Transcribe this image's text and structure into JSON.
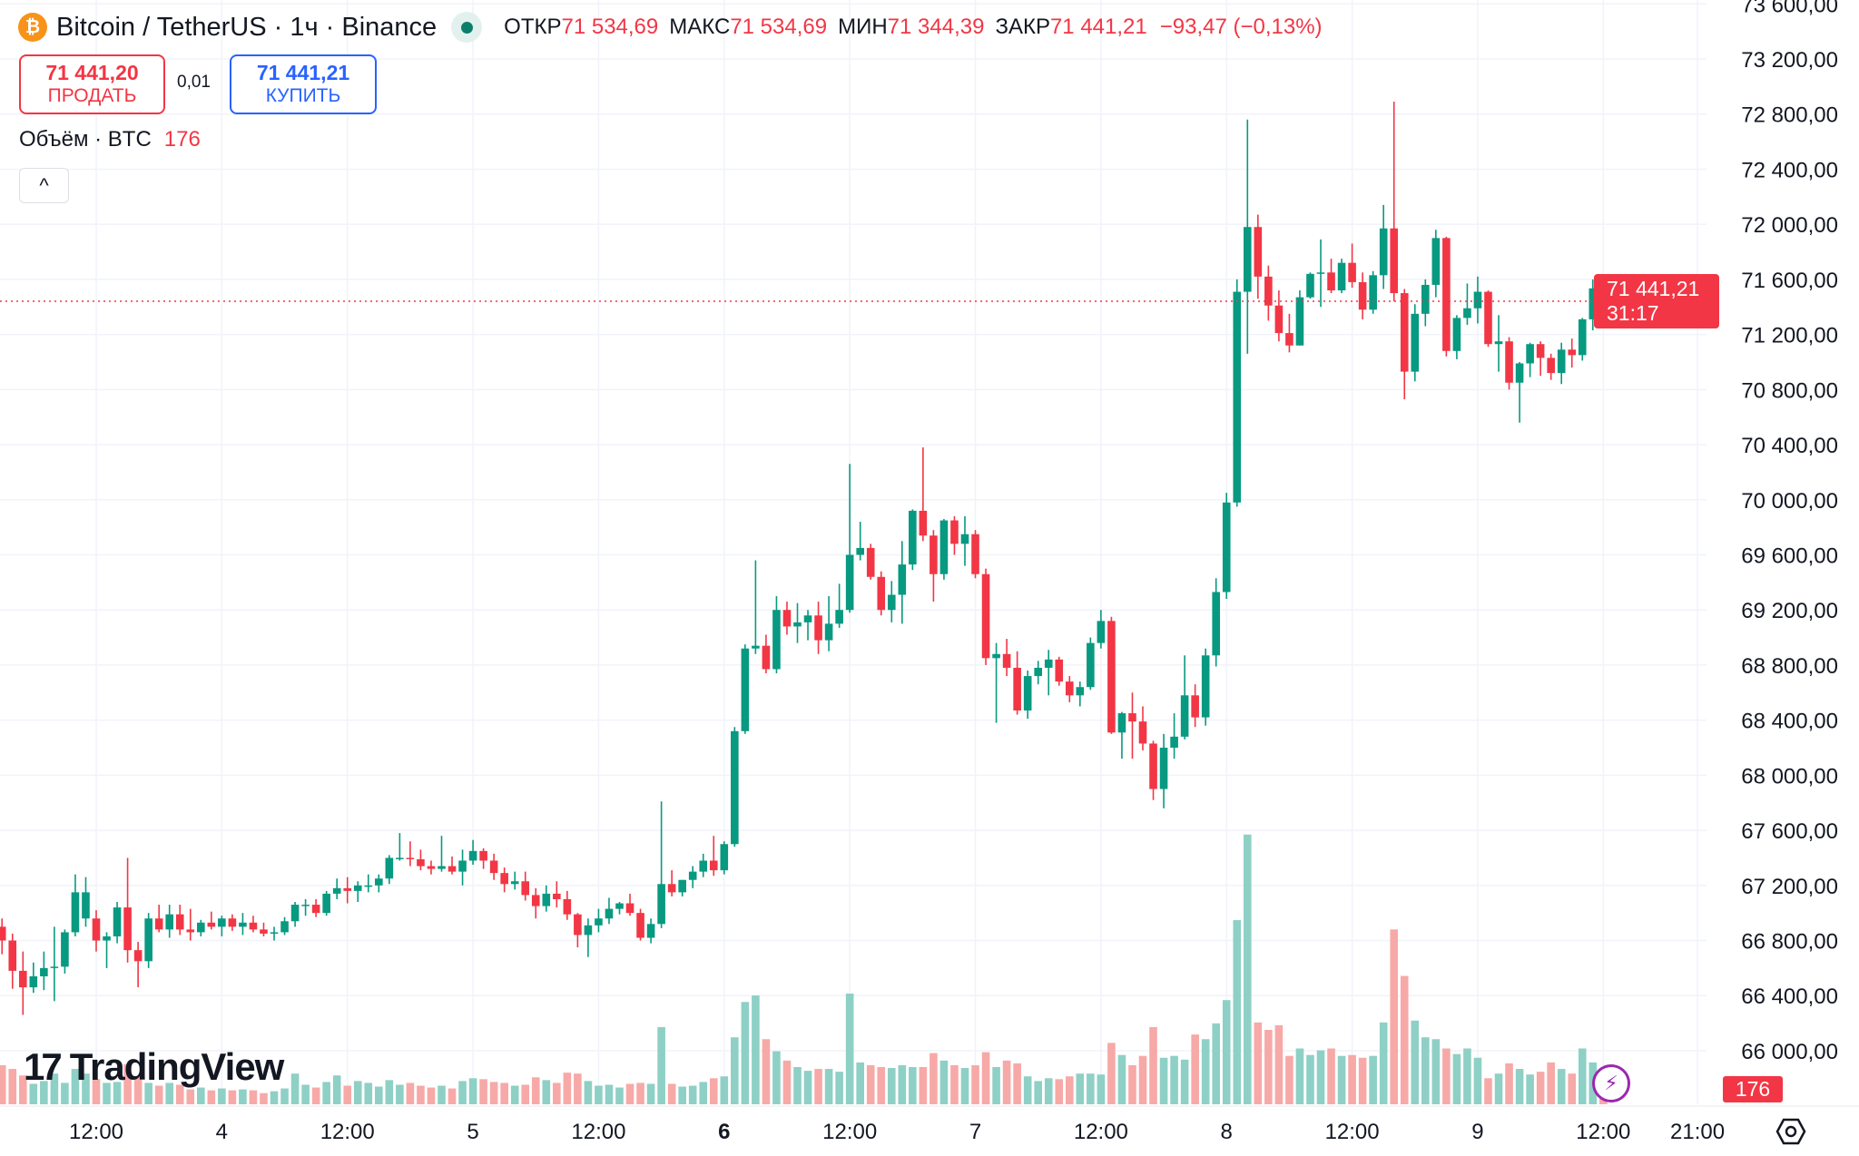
{
  "header": {
    "symbol_title": "Bitcoin / TetherUS · 1ч · Binance",
    "logo_letter": "₿",
    "ohlc": [
      {
        "label": "ОТКР",
        "value": "71 534,69"
      },
      {
        "label": "МАКС",
        "value": "71 534,69"
      },
      {
        "label": "МИН",
        "value": "71 344,39"
      },
      {
        "label": "ЗАКР",
        "value": "71 441,21"
      }
    ],
    "change": "−93,47 (−0,13%)"
  },
  "trade": {
    "sell_price": "71 441,20",
    "sell_label": "ПРОДАТЬ",
    "spread": "0,01",
    "buy_price": "71 441,21",
    "buy_label": "КУПИТЬ"
  },
  "volume_legend": {
    "label": "Объём · BTC",
    "value": "176"
  },
  "collapse_icon": "^",
  "price_tag": {
    "price": "71 441,21",
    "countdown": "31:17"
  },
  "volume_tag": "176",
  "branding": {
    "logo_mark": "17",
    "logo_text": "TradingView"
  },
  "icons": {
    "bolt": "⚡",
    "settings": "settings-hexagon-icon"
  },
  "colors": {
    "up": "#089981",
    "down": "#F23645",
    "up_volume": "#8ed0c5",
    "down_volume": "#f7a9a7",
    "sell": "#F23645",
    "buy": "#2962FF"
  },
  "chart_data": {
    "type": "candlestick",
    "interval": "1ч",
    "price_axis_labels": [
      "73 600,00",
      "73 200,00",
      "72 800,00",
      "72 400,00",
      "72 000,00",
      "71 600,00",
      "71 200,00",
      "70 800,00",
      "70 400,00",
      "70 000,00",
      "69 600,00",
      "69 200,00",
      "68 800,00",
      "68 400,00",
      "68 000,00",
      "67 600,00",
      "67 200,00",
      "66 800,00",
      "66 400,00",
      "66 000,00"
    ],
    "price_axis_values": [
      73600,
      73200,
      72800,
      72400,
      72000,
      71600,
      71200,
      70800,
      70400,
      70000,
      69600,
      69200,
      68800,
      68400,
      68000,
      67600,
      67200,
      66800,
      66400,
      66000
    ],
    "time_axis_labels": [
      "12:00",
      "4",
      "12:00",
      "5",
      "12:00",
      "6",
      "12:00",
      "7",
      "12:00",
      "8",
      "12:00",
      "9",
      "12:00",
      "21:00"
    ],
    "ylim": [
      65800,
      73700
    ],
    "grid": true,
    "last_price": 71441.21,
    "columns": [
      "open",
      "high",
      "low",
      "close",
      "volume"
    ],
    "candles": [
      [
        66900,
        66960,
        66700,
        66800,
        420
      ],
      [
        66800,
        66850,
        66450,
        66580,
        380
      ],
      [
        66580,
        66720,
        66260,
        66460,
        310
      ],
      [
        66460,
        66640,
        66420,
        66540,
        220
      ],
      [
        66540,
        66720,
        66440,
        66600,
        250
      ],
      [
        66600,
        66900,
        66360,
        66610,
        330
      ],
      [
        66610,
        66880,
        66560,
        66860,
        230
      ],
      [
        66860,
        67280,
        66830,
        67150,
        380
      ],
      [
        66960,
        67260,
        66900,
        67150,
        330
      ],
      [
        66960,
        67020,
        66720,
        66800,
        270
      ],
      [
        66800,
        66860,
        66600,
        66830,
        230
      ],
      [
        66830,
        67080,
        66780,
        67040,
        240
      ],
      [
        67040,
        67400,
        66640,
        66730,
        430
      ],
      [
        66730,
        66790,
        66460,
        66650,
        300
      ],
      [
        66650,
        67000,
        66600,
        66960,
        230
      ],
      [
        66960,
        67060,
        66860,
        66880,
        200
      ],
      [
        66880,
        67060,
        66820,
        66990,
        230
      ],
      [
        66990,
        67060,
        66840,
        66880,
        210
      ],
      [
        66880,
        67030,
        66800,
        66860,
        160
      ],
      [
        66860,
        66950,
        66830,
        66930,
        180
      ],
      [
        66930,
        67010,
        66880,
        66900,
        150
      ],
      [
        66900,
        66980,
        66830,
        66960,
        170
      ],
      [
        66960,
        66990,
        66870,
        66900,
        150
      ],
      [
        66900,
        67000,
        66840,
        66930,
        160
      ],
      [
        66930,
        66980,
        66860,
        66880,
        150
      ],
      [
        66880,
        66930,
        66830,
        66850,
        120
      ],
      [
        66850,
        66900,
        66800,
        66860,
        140
      ],
      [
        66860,
        66970,
        66840,
        66940,
        170
      ],
      [
        66940,
        67080,
        66900,
        67060,
        330
      ],
      [
        67060,
        67100,
        66980,
        67060,
        210
      ],
      [
        67060,
        67100,
        66970,
        67000,
        180
      ],
      [
        67000,
        67160,
        66980,
        67140,
        240
      ],
      [
        67140,
        67250,
        67100,
        67180,
        310
      ],
      [
        67180,
        67260,
        67070,
        67160,
        200
      ],
      [
        67160,
        67230,
        67080,
        67200,
        250
      ],
      [
        67200,
        67280,
        67150,
        67200,
        230
      ],
      [
        67200,
        67280,
        67150,
        67250,
        190
      ],
      [
        67250,
        67420,
        67210,
        67400,
        260
      ],
      [
        67400,
        67580,
        67380,
        67400,
        210
      ],
      [
        67400,
        67520,
        67340,
        67390,
        230
      ],
      [
        67390,
        67460,
        67310,
        67340,
        200
      ],
      [
        67340,
        67380,
        67280,
        67320,
        180
      ],
      [
        67320,
        67560,
        67300,
        67340,
        200
      ],
      [
        67340,
        67410,
        67280,
        67300,
        170
      ],
      [
        67300,
        67460,
        67200,
        67380,
        250
      ],
      [
        67380,
        67530,
        67350,
        67450,
        280
      ],
      [
        67450,
        67470,
        67320,
        67380,
        270
      ],
      [
        67380,
        67430,
        67240,
        67290,
        240
      ],
      [
        67290,
        67330,
        67150,
        67210,
        230
      ],
      [
        67210,
        67300,
        67170,
        67230,
        200
      ],
      [
        67230,
        67300,
        67090,
        67130,
        210
      ],
      [
        67130,
        67180,
        66960,
        67050,
        290
      ],
      [
        67050,
        67200,
        67010,
        67140,
        260
      ],
      [
        67140,
        67230,
        67040,
        67100,
        230
      ],
      [
        67100,
        67160,
        66950,
        66990,
        340
      ],
      [
        66990,
        67000,
        66750,
        66840,
        330
      ],
      [
        66840,
        66960,
        66680,
        66910,
        250
      ],
      [
        66910,
        67030,
        66860,
        66960,
        200
      ],
      [
        66960,
        67110,
        66920,
        67030,
        210
      ],
      [
        67030,
        67080,
        66990,
        67070,
        180
      ],
      [
        67070,
        67140,
        66980,
        67000,
        220
      ],
      [
        67000,
        67030,
        66800,
        66820,
        230
      ],
      [
        66820,
        66960,
        66780,
        66920,
        220
      ],
      [
        66920,
        67810,
        66890,
        67210,
        830
      ],
      [
        67210,
        67310,
        67120,
        67150,
        220
      ],
      [
        67150,
        67240,
        67120,
        67240,
        190
      ],
      [
        67240,
        67340,
        67180,
        67300,
        200
      ],
      [
        67300,
        67430,
        67260,
        67380,
        240
      ],
      [
        67380,
        67560,
        67270,
        67310,
        280
      ],
      [
        67310,
        67520,
        67280,
        67500,
        300
      ],
      [
        67500,
        68350,
        67480,
        68320,
        720
      ],
      [
        68320,
        68950,
        68300,
        68920,
        1100
      ],
      [
        68920,
        69560,
        68880,
        68940,
        1170
      ],
      [
        68940,
        69020,
        68740,
        68770,
        700
      ],
      [
        68770,
        69300,
        68740,
        69200,
        570
      ],
      [
        69200,
        69260,
        69020,
        69080,
        470
      ],
      [
        69080,
        69250,
        68960,
        69110,
        400
      ],
      [
        69110,
        69200,
        68980,
        69160,
        360
      ],
      [
        69160,
        69260,
        68880,
        68980,
        380
      ],
      [
        68980,
        69300,
        68900,
        69100,
        380
      ],
      [
        69100,
        69390,
        69070,
        69200,
        350
      ],
      [
        69200,
        70260,
        69180,
        69600,
        1190
      ],
      [
        69600,
        69840,
        69560,
        69650,
        450
      ],
      [
        69650,
        69680,
        69420,
        69440,
        420
      ],
      [
        69440,
        69480,
        69160,
        69200,
        400
      ],
      [
        69200,
        69410,
        69110,
        69310,
        390
      ],
      [
        69310,
        69700,
        69100,
        69530,
        420
      ],
      [
        69530,
        69930,
        69490,
        69920,
        400
      ],
      [
        69920,
        70380,
        69700,
        69740,
        400
      ],
      [
        69740,
        69780,
        69260,
        69460,
        550
      ],
      [
        69460,
        69860,
        69420,
        69850,
        470
      ],
      [
        69850,
        69880,
        69600,
        69680,
        420
      ],
      [
        69680,
        69880,
        69520,
        69750,
        390
      ],
      [
        69750,
        69780,
        69430,
        69460,
        420
      ],
      [
        69460,
        69500,
        68800,
        68850,
        560
      ],
      [
        68850,
        68960,
        68380,
        68880,
        400
      ],
      [
        68880,
        68990,
        68720,
        68780,
        470
      ],
      [
        68780,
        68900,
        68440,
        68470,
        440
      ],
      [
        68470,
        68760,
        68410,
        68720,
        300
      ],
      [
        68720,
        68830,
        68660,
        68780,
        250
      ],
      [
        68780,
        68910,
        68580,
        68840,
        280
      ],
      [
        68840,
        68860,
        68650,
        68680,
        270
      ],
      [
        68680,
        68720,
        68530,
        68580,
        300
      ],
      [
        68580,
        68680,
        68500,
        68640,
        330
      ],
      [
        68640,
        69000,
        68620,
        68960,
        330
      ],
      [
        68960,
        69200,
        68920,
        69120,
        320
      ],
      [
        69120,
        69150,
        68300,
        68310,
        660
      ],
      [
        68310,
        68460,
        68120,
        68450,
        530
      ],
      [
        68450,
        68600,
        68120,
        68390,
        420
      ],
      [
        68390,
        68500,
        68180,
        68230,
        520
      ],
      [
        68230,
        68250,
        67820,
        67900,
        830
      ],
      [
        67900,
        68300,
        67760,
        68200,
        500
      ],
      [
        68200,
        68450,
        68120,
        68280,
        520
      ],
      [
        68280,
        68870,
        68260,
        68580,
        480
      ],
      [
        68580,
        68660,
        68350,
        68420,
        750
      ],
      [
        68420,
        68920,
        68360,
        68870,
        700
      ],
      [
        68870,
        69430,
        68790,
        69330,
        870
      ],
      [
        69330,
        70050,
        69280,
        69980,
        1120
      ],
      [
        69980,
        71600,
        69950,
        71510,
        1980
      ],
      [
        71510,
        72760,
        71060,
        71980,
        2900
      ],
      [
        71980,
        72070,
        71460,
        71620,
        880
      ],
      [
        71620,
        71700,
        71300,
        71410,
        800
      ],
      [
        71410,
        71520,
        71150,
        71210,
        850
      ],
      [
        71210,
        71350,
        71070,
        71120,
        520
      ],
      [
        71120,
        71520,
        71120,
        71470,
        600
      ],
      [
        71470,
        71650,
        71460,
        71640,
        530
      ],
      [
        71640,
        71890,
        71400,
        71650,
        580
      ],
      [
        71650,
        71750,
        71500,
        71520,
        600
      ],
      [
        71520,
        71750,
        71500,
        71720,
        520
      ],
      [
        71720,
        71860,
        71540,
        71580,
        530
      ],
      [
        71580,
        71650,
        71310,
        71380,
        500
      ],
      [
        71380,
        71660,
        71350,
        71630,
        520
      ],
      [
        71630,
        72140,
        71530,
        71970,
        880
      ],
      [
        71970,
        72890,
        71440,
        71500,
        1880
      ],
      [
        71500,
        71530,
        70730,
        70930,
        1380
      ],
      [
        70930,
        71420,
        70860,
        71350,
        900
      ],
      [
        71350,
        71600,
        71260,
        71560,
        720
      ],
      [
        71560,
        71960,
        71470,
        71900,
        700
      ],
      [
        71900,
        71910,
        71040,
        71080,
        600
      ],
      [
        71080,
        71340,
        71020,
        71320,
        540
      ],
      [
        71320,
        71570,
        71270,
        71390,
        600
      ],
      [
        71390,
        71620,
        71280,
        71510,
        500
      ],
      [
        71510,
        71520,
        71110,
        71130,
        280
      ],
      [
        71130,
        71340,
        70930,
        71150,
        330
      ],
      [
        71150,
        71180,
        70800,
        70850,
        440
      ],
      [
        70850,
        71000,
        70560,
        70990,
        380
      ],
      [
        70990,
        71140,
        70890,
        71130,
        320
      ],
      [
        71130,
        71150,
        70900,
        71030,
        350
      ],
      [
        71030,
        71060,
        70870,
        70920,
        450
      ],
      [
        70920,
        71140,
        70840,
        71090,
        380
      ],
      [
        71090,
        71170,
        70960,
        71050,
        330
      ],
      [
        71050,
        71320,
        71010,
        71310,
        600
      ],
      [
        71310,
        71600,
        71230,
        71534.69,
        450
      ],
      [
        71534.69,
        71534.69,
        71344.39,
        71441.21,
        176
      ]
    ]
  }
}
